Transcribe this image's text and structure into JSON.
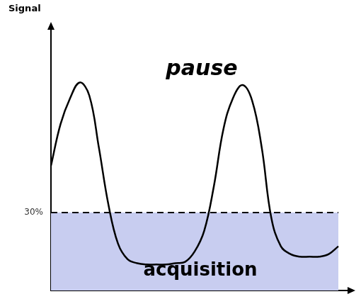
{
  "chart_data": {
    "type": "line",
    "y_label": "Signal",
    "categories": [
      null,
      null,
      null,
      null,
      null,
      null,
      null,
      null,
      null,
      null,
      null,
      null,
      null,
      null,
      null,
      null,
      null,
      null,
      null,
      null,
      null,
      null,
      null,
      null,
      null,
      null,
      null,
      null,
      null,
      null,
      null
    ],
    "values": [
      48,
      64,
      74,
      80,
      75,
      55,
      33,
      18,
      12,
      10.5,
      10,
      10,
      10,
      10.5,
      11,
      15,
      23,
      40,
      62,
      74,
      79,
      73,
      55,
      28,
      17,
      14,
      13,
      13,
      13,
      14,
      17
    ],
    "color": "#000000",
    "ylim": [
      0,
      100
    ],
    "yticks": [
      {
        "value": 30,
        "label": "30%"
      }
    ],
    "tick_labels": "y",
    "grid": false,
    "threshold": 30,
    "regions": {
      "above": "pause",
      "below": "acquisition"
    }
  }
}
